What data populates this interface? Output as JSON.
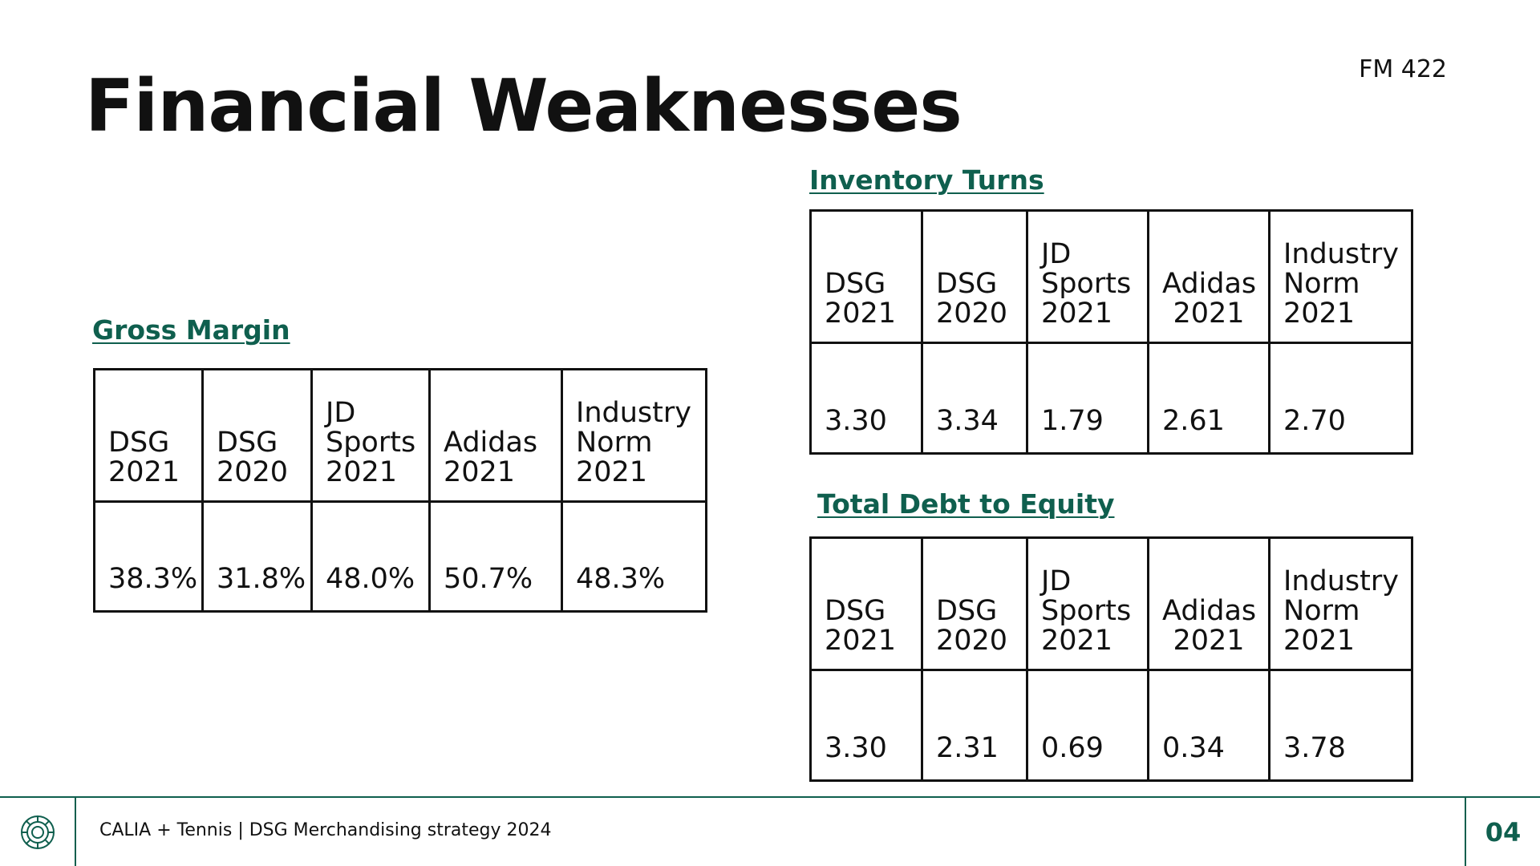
{
  "slide": {
    "title": "Financial Weaknesses",
    "course_code": "FM 422"
  },
  "colors": {
    "accent": "#0f5f4e",
    "text": "#111111",
    "background": "#ffffff"
  },
  "gross_margin": {
    "heading": "Gross Margin",
    "headers": [
      "DSG\n2021",
      "DSG\n2020",
      "JD\nSports\n2021",
      "Adidas\n2021",
      "Industry\nNorm\n2021"
    ],
    "values": [
      "38.3%",
      "31.8%",
      "48.0%",
      "50.7%",
      "48.3%"
    ]
  },
  "inventory_turns": {
    "heading": "Inventory Turns",
    "headers": [
      "DSG\n2021",
      "DSG\n2020",
      "JD\nSports\n2021",
      "Adidas\n2021",
      "Industry\nNorm\n2021"
    ],
    "values": [
      "3.30",
      "3.34",
      "1.79",
      "2.61",
      "2.70"
    ]
  },
  "debt_to_equity": {
    "heading": "Total Debt to Equity",
    "headers": [
      "DSG\n2021",
      "DSG\n2020",
      "JD\nSports\n2021",
      "Adidas\n2021",
      "Industry\nNorm\n2021"
    ],
    "values": [
      "3.30",
      "2.31",
      "0.69",
      "0.34",
      "3.78"
    ]
  },
  "footer": {
    "logo_icon": "sun-emblem-icon",
    "text": "CALIA + Tennis | DSG Merchandising strategy 2024",
    "page_number": "04"
  }
}
